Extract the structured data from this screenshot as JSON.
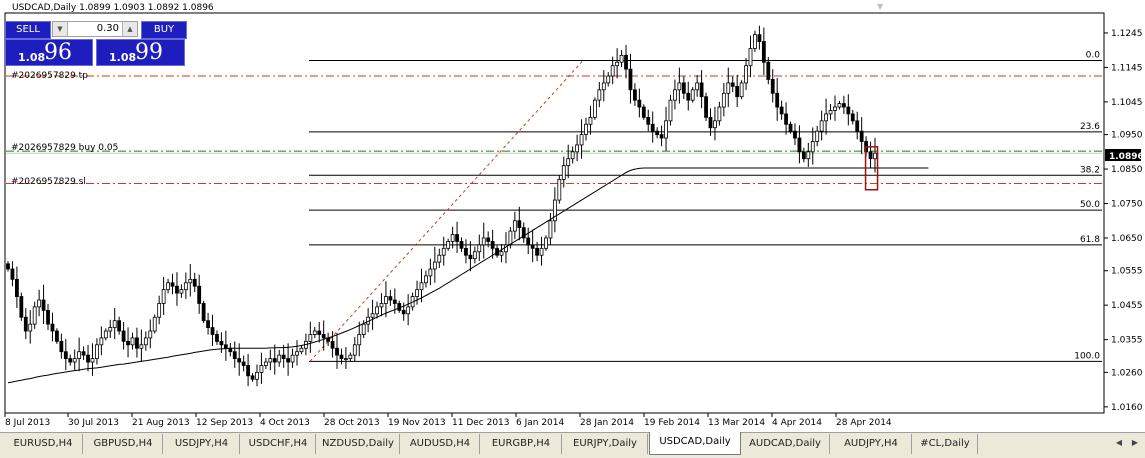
{
  "header": {
    "symbol_info": "USDCAD,Daily  1.0899 1.0903 1.0892 1.0896"
  },
  "trade_panel": {
    "sell_label": "SELL",
    "buy_label": "BUY",
    "lot": "0.30",
    "bid_small": "1.08",
    "bid_big": "96",
    "ask_small": "1.08",
    "ask_big": "99"
  },
  "order_labels": {
    "tp": "#2026957829 tp",
    "buy": "#2026957829 buy 0.05",
    "sl": "#2026957829 sl"
  },
  "current_price_label": "1.0896",
  "tabs": [
    {
      "label": "EURUSD,H4"
    },
    {
      "label": "GBPUSD,H4"
    },
    {
      "label": "USDJPY,H4"
    },
    {
      "label": "USDCHF,H4"
    },
    {
      "label": "NZDUSD,Daily"
    },
    {
      "label": "AUDUSD,H4"
    },
    {
      "label": "EURGBP,H4"
    },
    {
      "label": "EURJPY,Daily"
    },
    {
      "label": "USDCAD,Daily"
    },
    {
      "label": "AUDCAD,Daily"
    },
    {
      "label": "AUDJPY,H4"
    },
    {
      "label": "#CL,Daily"
    }
  ],
  "active_tab": "USDCAD,Daily",
  "colors": {
    "candle": "#000000",
    "ma": "#000000",
    "order_tp_sl": "#d23c1e",
    "order_entry": "#0a8a0a",
    "fib": "#000000",
    "trend": "#d23c1e",
    "highlight_box": "#a01010"
  },
  "chart_data": {
    "type": "candlestick",
    "symbol": "USDCAD",
    "timeframe": "Daily",
    "ohlc_last": {
      "open": 1.0899,
      "high": 1.0903,
      "low": 1.0892,
      "close": 1.0896
    },
    "ylim": [
      1.0145,
      1.13
    ],
    "y_ticks": [
      1.1245,
      1.1145,
      1.1045,
      1.095,
      1.085,
      1.075,
      1.065,
      1.0555,
      1.0455,
      1.0355,
      1.026,
      1.016
    ],
    "x_tick_labels": [
      "8 Jul 2013",
      "30 Jul 2013",
      "21 Aug 2013",
      "12 Sep 2013",
      "4 Oct 2013",
      "28 Oct 2013",
      "19 Nov 2013",
      "11 Dec 2013",
      "6 Jan 2014",
      "28 Jan 2014",
      "19 Feb 2014",
      "13 Mar 2014",
      "4 Apr 2014",
      "28 Apr 2014"
    ],
    "fibonacci": [
      {
        "level": "0.0",
        "price": 1.1165
      },
      {
        "level": "23.6",
        "price": 1.0958
      },
      {
        "level": "38.2",
        "price": 1.0832
      },
      {
        "level": "50.0",
        "price": 1.0731
      },
      {
        "level": "61.8",
        "price": 1.063
      },
      {
        "level": "100.0",
        "price": 1.0292
      }
    ],
    "orders": {
      "tp": 1.112,
      "entry": 1.0902,
      "sl": 1.0808
    },
    "current_price": 1.0896,
    "close_series": [
      1.056,
      1.053,
      1.048,
      1.042,
      1.038,
      1.04,
      1.045,
      1.047,
      1.044,
      1.04,
      1.038,
      1.035,
      1.032,
      1.03,
      1.029,
      1.03,
      1.032,
      1.031,
      1.029,
      1.03,
      1.034,
      1.036,
      1.038,
      1.039,
      1.041,
      1.038,
      1.035,
      1.034,
      1.036,
      1.033,
      1.034,
      1.036,
      1.038,
      1.042,
      1.046,
      1.05,
      1.052,
      1.051,
      1.049,
      1.05,
      1.052,
      1.053,
      1.051,
      1.046,
      1.041,
      1.039,
      1.037,
      1.035,
      1.034,
      1.033,
      1.032,
      1.03,
      1.029,
      1.028,
      1.025,
      1.024,
      1.026,
      1.028,
      1.029,
      1.03,
      1.029,
      1.031,
      1.03,
      1.029,
      1.031,
      1.032,
      1.033,
      1.035,
      1.037,
      1.038,
      1.037,
      1.036,
      1.035,
      1.033,
      1.031,
      1.03,
      1.03,
      1.031,
      1.034,
      1.037,
      1.04,
      1.042,
      1.043,
      1.045,
      1.046,
      1.048,
      1.047,
      1.046,
      1.044,
      1.043,
      1.045,
      1.048,
      1.05,
      1.052,
      1.054,
      1.056,
      1.058,
      1.06,
      1.062,
      1.064,
      1.066,
      1.064,
      1.062,
      1.06,
      1.059,
      1.061,
      1.063,
      1.065,
      1.064,
      1.062,
      1.06,
      1.061,
      1.063,
      1.067,
      1.07,
      1.068,
      1.065,
      1.063,
      1.062,
      1.06,
      1.062,
      1.065,
      1.07,
      1.076,
      1.082,
      1.086,
      1.088,
      1.09,
      1.092,
      1.095,
      1.098,
      1.1,
      1.105,
      1.108,
      1.11,
      1.112,
      1.115,
      1.116,
      1.118,
      1.114,
      1.108,
      1.105,
      1.103,
      1.1,
      1.098,
      1.096,
      1.095,
      1.094,
      1.099,
      1.105,
      1.108,
      1.11,
      1.107,
      1.105,
      1.108,
      1.11,
      1.106,
      1.1,
      1.097,
      1.099,
      1.103,
      1.107,
      1.11,
      1.109,
      1.106,
      1.11,
      1.115,
      1.12,
      1.124,
      1.122,
      1.116,
      1.111,
      1.107,
      1.103,
      1.101,
      1.098,
      1.096,
      1.094,
      1.09,
      1.088,
      1.09,
      1.093,
      1.096,
      1.099,
      1.101,
      1.102,
      1.103,
      1.104,
      1.103,
      1.101,
      1.099,
      1.096,
      1.093,
      1.09,
      1.088,
      1.0896
    ],
    "ma_series": [
      1.023,
      1.0232,
      1.0235,
      1.0237,
      1.024,
      1.0242,
      1.0245,
      1.0248,
      1.025,
      1.0252,
      1.0255,
      1.0257,
      1.0259,
      1.0261,
      1.0263,
      1.0265,
      1.0267,
      1.0269,
      1.0271,
      1.0272,
      1.0273,
      1.0275,
      1.0277,
      1.0279,
      1.0281,
      1.0283,
      1.0284,
      1.0286,
      1.0288,
      1.029,
      1.0292,
      1.0294,
      1.0296,
      1.0298,
      1.03,
      1.0302,
      1.0304,
      1.0307,
      1.0309,
      1.0311,
      1.0313,
      1.0315,
      1.0318,
      1.032,
      1.0322,
      1.0324,
      1.0326,
      1.0327,
      1.0328,
      1.0329,
      1.033,
      1.033,
      1.033,
      1.033,
      1.033,
      1.033,
      1.033,
      1.033,
      1.033,
      1.0331,
      1.0331,
      1.0332,
      1.0332,
      1.0333,
      1.0334,
      1.0336,
      1.0338,
      1.0341,
      1.0344,
      1.0348,
      1.0352,
      1.0356,
      1.036,
      1.0364,
      1.0369,
      1.0374,
      1.0379,
      1.0384,
      1.039,
      1.0396,
      1.0402,
      1.0408,
      1.0414,
      1.042,
      1.0426,
      1.0432,
      1.0437,
      1.0442,
      1.0447,
      1.0452,
      1.0458,
      1.0464,
      1.047,
      1.0476,
      1.0483,
      1.049,
      1.0497,
      1.0504,
      1.0512,
      1.052,
      1.0528,
      1.0536,
      1.0544,
      1.0552,
      1.056,
      1.0568,
      1.0576,
      1.0584,
      1.0592,
      1.06,
      1.0608,
      1.0616,
      1.0624,
      1.0632,
      1.064,
      1.0648,
      1.0656,
      1.0664,
      1.0672,
      1.068,
      1.0688,
      1.0696,
      1.0704,
      1.0712,
      1.072,
      1.0728,
      1.0736,
      1.0744,
      1.0752,
      1.076,
      1.0768,
      1.0776,
      1.0784,
      1.0792,
      1.08,
      1.0808,
      1.0816,
      1.0824,
      1.0832,
      1.084,
      1.0846,
      1.085,
      1.0852,
      1.0853,
      1.0853,
      1.0853,
      1.0853,
      1.0853,
      1.0853,
      1.0853,
      1.0853,
      1.0853,
      1.0853,
      1.0853,
      1.0853,
      1.0853,
      1.0853,
      1.0853,
      1.0853,
      1.0853,
      1.0853,
      1.0853,
      1.0853,
      1.0853,
      1.0853,
      1.0853,
      1.0853,
      1.0853,
      1.0853,
      1.0853,
      1.0853,
      1.0853,
      1.0853,
      1.0853,
      1.0853,
      1.0853,
      1.0853,
      1.0853,
      1.0853,
      1.0853,
      1.0853,
      1.0853,
      1.0853,
      1.0853,
      1.0853,
      1.0853,
      1.0853,
      1.0853,
      1.0853,
      1.0853,
      1.0853,
      1.0853,
      1.0853,
      1.0853,
      1.0853,
      1.0853,
      1.0853,
      1.0853,
      1.0853,
      1.0853,
      1.0853,
      1.0853,
      1.0853,
      1.0853,
      1.0853,
      1.0853,
      1.0853,
      1.0853
    ]
  }
}
